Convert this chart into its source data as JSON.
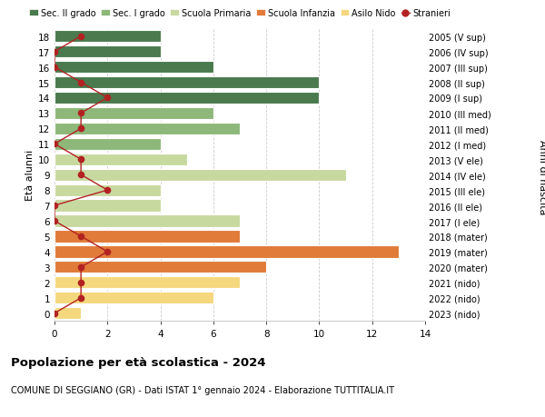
{
  "ages": [
    0,
    1,
    2,
    3,
    4,
    5,
    6,
    7,
    8,
    9,
    10,
    11,
    12,
    13,
    14,
    15,
    16,
    17,
    18
  ],
  "right_labels": [
    "2023 (nido)",
    "2022 (nido)",
    "2021 (nido)",
    "2020 (mater)",
    "2019 (mater)",
    "2018 (mater)",
    "2017 (I ele)",
    "2016 (II ele)",
    "2015 (III ele)",
    "2014 (IV ele)",
    "2013 (V ele)",
    "2012 (I med)",
    "2011 (II med)",
    "2010 (III med)",
    "2009 (I sup)",
    "2008 (II sup)",
    "2007 (III sup)",
    "2006 (IV sup)",
    "2005 (V sup)"
  ],
  "bar_values": [
    1,
    6,
    7,
    8,
    13,
    7,
    7,
    4,
    4,
    11,
    5,
    4,
    7,
    6,
    10,
    10,
    6,
    4,
    4
  ],
  "bar_colors": [
    "#f5d87e",
    "#f5d87e",
    "#f5d87e",
    "#e07b39",
    "#e07b39",
    "#e07b39",
    "#c8d9a0",
    "#c8d9a0",
    "#c8d9a0",
    "#c8d9a0",
    "#c8d9a0",
    "#8eb87a",
    "#8eb87a",
    "#8eb87a",
    "#4a7a4e",
    "#4a7a4e",
    "#4a7a4e",
    "#4a7a4e",
    "#4a7a4e"
  ],
  "stranieri_values": [
    0,
    1,
    1,
    1,
    2,
    1,
    0,
    0,
    2,
    1,
    1,
    0,
    1,
    1,
    2,
    1,
    0,
    0,
    1
  ],
  "legend_labels": [
    "Sec. II grado",
    "Sec. I grado",
    "Scuola Primaria",
    "Scuola Infanzia",
    "Asilo Nido",
    "Stranieri"
  ],
  "legend_colors": [
    "#4a7a4e",
    "#8eb87a",
    "#c8d9a0",
    "#e07b39",
    "#f5d87e",
    "#b22222"
  ],
  "title": "Popolazione per età scolastica - 2024",
  "subtitle": "COMUNE DI SEGGIANO (GR) - Dati ISTAT 1° gennaio 2024 - Elaborazione TUTTITALIA.IT",
  "ylabel_left": "Età alunni",
  "ylabel_right": "Anni di nascita",
  "xlim": [
    0,
    14
  ],
  "xticks": [
    0,
    2,
    4,
    6,
    8,
    10,
    12,
    14
  ],
  "background_color": "#ffffff",
  "grid_color": "#cccccc",
  "bar_height": 0.78
}
